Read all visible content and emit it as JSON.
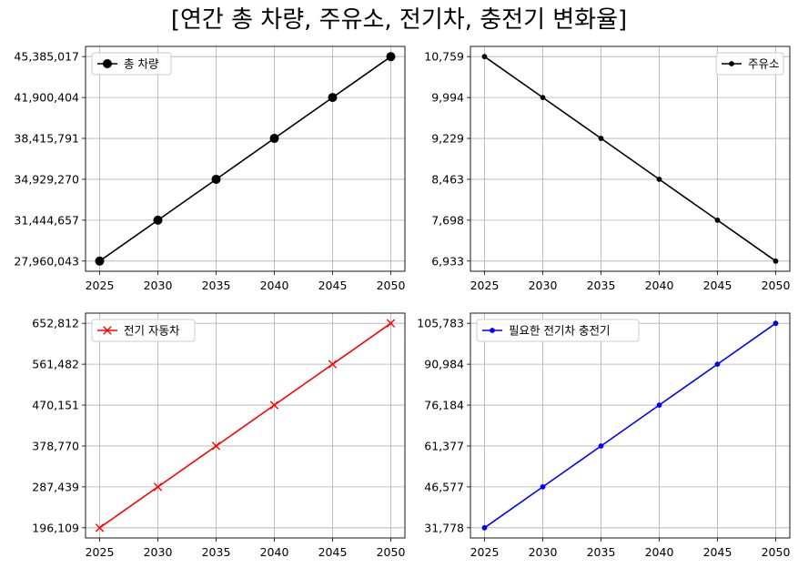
{
  "suptitle": "[연간 총 차량, 주유소, 전기차, 충전기 변화율]",
  "chart_data": [
    {
      "type": "line",
      "x": [
        2025,
        2030,
        2035,
        2040,
        2045,
        2050
      ],
      "series": [
        {
          "name": "총 차량",
          "values": [
            27960043,
            31444657,
            34929270,
            38415791,
            41900404,
            45385017
          ],
          "color": "#000000",
          "marker": "circle"
        }
      ],
      "yticks": [
        "27,960,043",
        "31,444,657",
        "34,929,270",
        "38,415,791",
        "41,900,404",
        "45,385,017"
      ],
      "xticks": [
        "2025",
        "2030",
        "2035",
        "2040",
        "2045",
        "2050"
      ],
      "ylim": [
        27960043,
        45385017
      ],
      "grid": true,
      "legend": "upper-left"
    },
    {
      "type": "line",
      "x": [
        2025,
        2030,
        2035,
        2040,
        2045,
        2050
      ],
      "series": [
        {
          "name": "주유소",
          "values": [
            10759,
            9994,
            9229,
            8463,
            7698,
            6933
          ],
          "color": "#000000",
          "marker": "point"
        }
      ],
      "yticks": [
        "6,933",
        "7,698",
        "8,463",
        "9,229",
        "9,994",
        "10,759"
      ],
      "xticks": [
        "2025",
        "2030",
        "2035",
        "2040",
        "2045",
        "2050"
      ],
      "ylim": [
        6933,
        10759
      ],
      "grid": true,
      "legend": "upper-right"
    },
    {
      "type": "line",
      "x": [
        2025,
        2030,
        2035,
        2040,
        2045,
        2050
      ],
      "series": [
        {
          "name": "전기 자동차",
          "values": [
            196109,
            287439,
            378770,
            470151,
            561482,
            652812
          ],
          "color": "#ff0000",
          "marker": "x"
        }
      ],
      "yticks": [
        "196,109",
        "287,439",
        "378,770",
        "470,151",
        "561,482",
        "652,812"
      ],
      "xticks": [
        "2025",
        "2030",
        "2035",
        "2040",
        "2045",
        "2050"
      ],
      "ylim": [
        196109,
        652812
      ],
      "grid": true,
      "legend": "upper-left"
    },
    {
      "type": "line",
      "x": [
        2025,
        2030,
        2035,
        2040,
        2045,
        2050
      ],
      "series": [
        {
          "name": "필요한 전기차 충전기",
          "values": [
            31778,
            46577,
            61377,
            76184,
            90984,
            105783
          ],
          "color": "#0000ff",
          "marker": "point"
        }
      ],
      "yticks": [
        "31,778",
        "46,577",
        "61,377",
        "76,184",
        "90,984",
        "105,783"
      ],
      "xticks": [
        "2025",
        "2030",
        "2035",
        "2040",
        "2045",
        "2050"
      ],
      "ylim": [
        31778,
        105783
      ],
      "grid": true,
      "legend": "upper-left"
    }
  ]
}
